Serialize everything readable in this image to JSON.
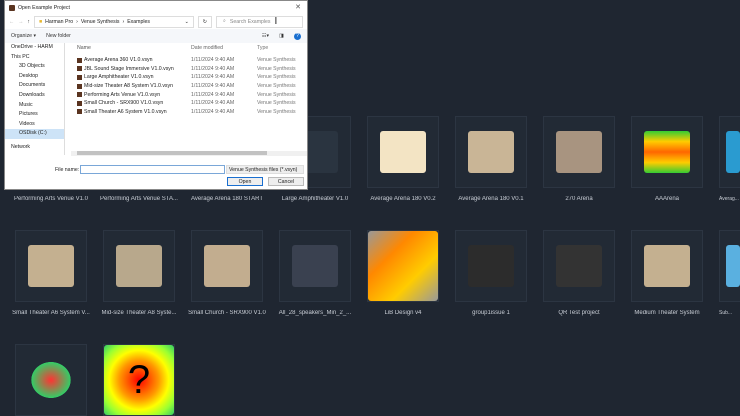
{
  "dialog": {
    "title": "Open Example Project",
    "close": "✕",
    "breadcrumb": [
      "Harman Pro",
      "Venue Synthesis",
      "Examples"
    ],
    "search_placeholder": "Search Examples",
    "organize": "Organize ▾",
    "new_folder": "New folder",
    "sidebar": [
      "OneDrive - HARM",
      "This PC",
      "3D Objects",
      "Desktop",
      "Documents",
      "Downloads",
      "Music",
      "Pictures",
      "Videos",
      "OSDisk (C:)",
      "Network"
    ],
    "columns": {
      "name": "Name",
      "date": "Date modified",
      "type": "Type"
    },
    "files": [
      {
        "name": "Average Arena 360 V1.0.vsyn",
        "date": "1/11/2024 9:40 AM",
        "type": "Venue Synthesis"
      },
      {
        "name": "JBL Sound Stage Immersive V1.0.vsyn",
        "date": "1/11/2024 9:40 AM",
        "type": "Venue Synthesis"
      },
      {
        "name": "Large Amphitheater V1.0.vsyn",
        "date": "1/11/2024 9:40 AM",
        "type": "Venue Synthesis"
      },
      {
        "name": "Mid-size Theater A8 System V1.0.vsyn",
        "date": "1/11/2024 9:40 AM",
        "type": "Venue Synthesis"
      },
      {
        "name": "Performing Arts Venue V1.0.vsyn",
        "date": "1/11/2024 9:40 AM",
        "type": "Venue Synthesis"
      },
      {
        "name": "Small Church - SRX900 V1.0.vsyn",
        "date": "1/11/2024 9:40 AM",
        "type": "Venue Synthesis"
      },
      {
        "name": "Small Theater A6 System V1.0.vsyn",
        "date": "1/11/2024 9:40 AM",
        "type": "Venue Synthesis"
      }
    ],
    "file_name_label": "File name:",
    "file_name_value": "",
    "file_type": "Venue Synthesis files (*.vsyn)",
    "open": "Open",
    "cancel": "Cancel"
  },
  "projects_row1": [
    "Performing Arts Venue V1.0",
    "Performing Arts Venue STA...",
    "Average Arena 180 START",
    "Large Amphitheater V1.0",
    "Average Arena 180 V0.2",
    "Average Arena 180 V0.1",
    "270 Arena",
    "AAArena",
    "Averag..."
  ],
  "projects_row2": [
    "Small Theater A6 System V...",
    "Mid-size Theater A8 Syste...",
    "Small Church - SRX900 V1.0",
    "All_28_speakers_Min_2_...",
    "LiB Design v4",
    "group1issue 1",
    "QR Test project",
    "Medium Theater System",
    "Sub..."
  ],
  "projects_row3": [
    "",
    ""
  ]
}
